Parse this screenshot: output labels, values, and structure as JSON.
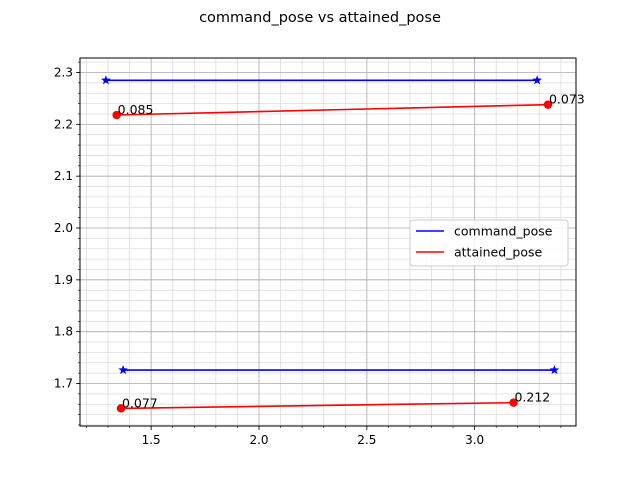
{
  "chart_data": {
    "type": "line",
    "title": "command_pose vs attained_pose",
    "xlabel": "",
    "ylabel": "",
    "xlim": [
      1.17,
      3.47
    ],
    "ylim": [
      1.618,
      2.328
    ],
    "x_major_ticks": [
      1.5,
      2.0,
      2.5,
      3.0
    ],
    "x_tick_labels": [
      "1.5",
      "2.0",
      "2.5",
      "3.0"
    ],
    "x_minor_step": 0.1,
    "y_major_ticks": [
      1.7,
      1.8,
      1.9,
      2.0,
      2.1,
      2.2,
      2.3
    ],
    "y_tick_labels": [
      "1.7",
      "1.8",
      "1.9",
      "2.0",
      "2.1",
      "2.2",
      "2.3"
    ],
    "y_minor_step": 0.02,
    "grid": true,
    "legend_position": "center-right",
    "series": [
      {
        "name": "command_pose",
        "color": "#0000ff",
        "marker": "star",
        "segments": [
          [
            [
              1.29,
              2.285
            ],
            [
              3.29,
              2.285
            ]
          ],
          [
            [
              1.37,
              1.726
            ],
            [
              3.37,
              1.726
            ]
          ]
        ]
      },
      {
        "name": "attained_pose",
        "color": "#ff0000",
        "marker": "circle",
        "segments": [
          [
            [
              1.34,
              2.218
            ],
            [
              3.34,
              2.238
            ]
          ],
          [
            [
              1.36,
              1.652
            ],
            [
              3.18,
              1.663
            ]
          ]
        ]
      }
    ],
    "annotations": [
      {
        "text": "0.085",
        "x": 1.34,
        "y": 2.218
      },
      {
        "text": "0.073",
        "x": 3.34,
        "y": 2.238
      },
      {
        "text": "0.077",
        "x": 1.36,
        "y": 1.652
      },
      {
        "text": "0.212",
        "x": 3.18,
        "y": 1.663
      }
    ]
  }
}
